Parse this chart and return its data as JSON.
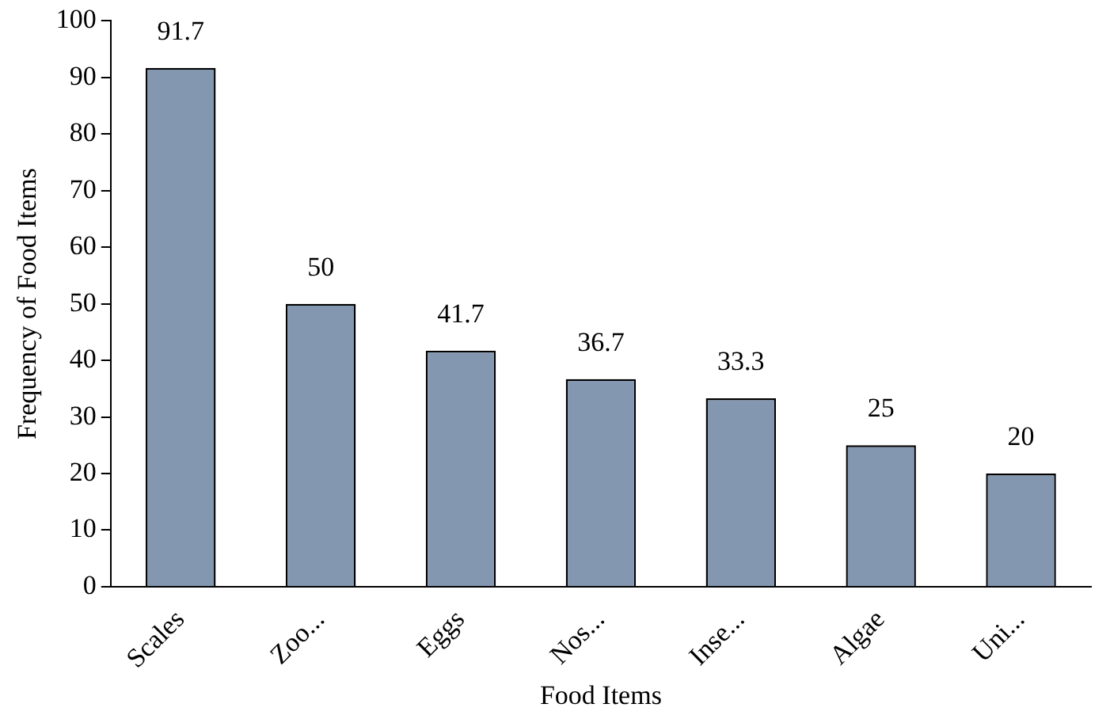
{
  "chart_data": {
    "type": "bar",
    "xlabel": "Food Items",
    "ylabel": "Frequency of Food Items",
    "categories": [
      "Scales",
      "Zoo...",
      "Eggs",
      "Nos...",
      "Inse...",
      "Algae",
      "Uni..."
    ],
    "values": [
      91.7,
      50,
      41.7,
      36.7,
      33.3,
      25,
      20
    ],
    "color": "#8497b0",
    "ylim": [
      0,
      100
    ],
    "yticks": [
      0,
      10,
      20,
      30,
      40,
      50,
      60,
      70,
      80,
      90,
      100
    ],
    "grid": false,
    "legend": false,
    "data_labels": true
  }
}
